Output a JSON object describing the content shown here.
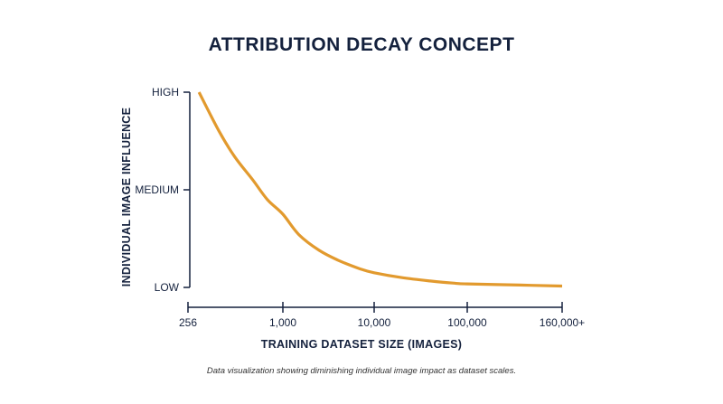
{
  "chart_data": {
    "type": "line",
    "title": "ATTRIBUTION DECAY CONCEPT",
    "xlabel": "TRAINING DATASET SIZE (IMAGES)",
    "ylabel": "INDIVIDUAL IMAGE INFLUENCE",
    "x_ticks": [
      "256",
      "1,000",
      "10,000",
      "100,000",
      "160,000+"
    ],
    "y_ticks": [
      "LOW",
      "MEDIUM",
      "HIGH"
    ],
    "x_scale": "categorical-log",
    "y_range": [
      "LOW",
      "HIGH"
    ],
    "grid": false,
    "legend": "none",
    "series": [
      {
        "color": "#e29a2e",
        "x": [
          300,
          400,
          500,
          650,
          800,
          1000,
          1500,
          2500,
          4000,
          7000,
          10000,
          20000,
          40000,
          70000,
          100000,
          130000,
          160000
        ],
        "y": [
          1.0,
          0.8,
          0.67,
          0.55,
          0.45,
          0.375,
          0.27,
          0.19,
          0.14,
          0.095,
          0.075,
          0.05,
          0.033,
          0.022,
          0.018,
          0.012,
          0.007
        ]
      }
    ]
  },
  "caption": "Data visualization showing diminishing individual image impact as dataset scales.",
  "colors": {
    "axis": "#14213d",
    "curve": "#e29a2e"
  }
}
